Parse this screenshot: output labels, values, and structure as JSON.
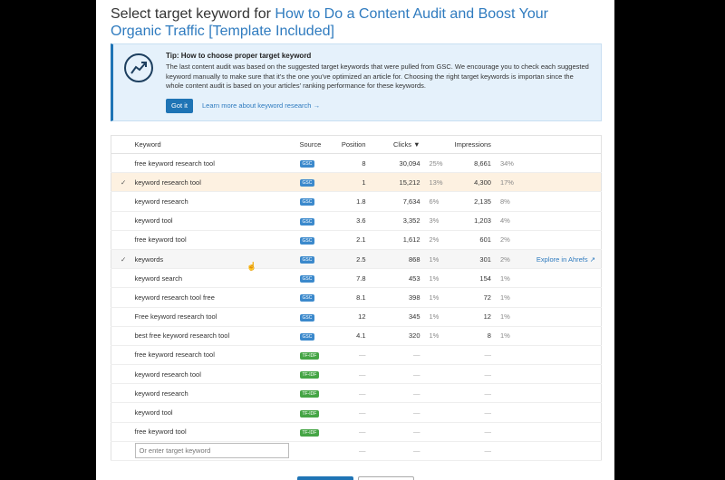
{
  "header": {
    "prefix": "Select target keyword for ",
    "article": "How to Do a Content Audit and Boost Your Organic Traffic [Template Included]"
  },
  "tip": {
    "heading": "Tip: How to choose proper target keyword",
    "body": "The last content audit was based on the suggested target keywords that were pulled from GSC. We encourage you to check each suggested keyword manually to make sure that it's the one you've optimized an article for. Choosing the right target keywords is importan since the whole content audit is based on your articles' ranking performance for these keywords.",
    "got_it": "Got it",
    "learn_more": "Learn more about keyword research →"
  },
  "columns": {
    "keyword": "Keyword",
    "source": "Source",
    "position": "Position",
    "clicks": "Clicks ▼",
    "impressions": "Impressions"
  },
  "explore_label": "Explore in Ahrefs ↗",
  "input_placeholder": "Or enter target keyword",
  "dash": "—",
  "rows": [
    {
      "check": "",
      "keyword": "free keyword research tool",
      "source": "GSC",
      "position": "8",
      "clicks": "30,094",
      "clicks_pct": "25%",
      "impr": "8,661",
      "impr_pct": "34%"
    },
    {
      "check": "✓",
      "keyword": "keyword research tool",
      "source": "GSC",
      "position": "1",
      "clicks": "15,212",
      "clicks_pct": "13%",
      "impr": "4,300",
      "impr_pct": "17%"
    },
    {
      "check": "",
      "keyword": "keyword research",
      "source": "GSC",
      "position": "1.8",
      "clicks": "7,634",
      "clicks_pct": "6%",
      "impr": "2,135",
      "impr_pct": "8%"
    },
    {
      "check": "",
      "keyword": "keyword tool",
      "source": "GSC",
      "position": "3.6",
      "clicks": "3,352",
      "clicks_pct": "3%",
      "impr": "1,203",
      "impr_pct": "4%"
    },
    {
      "check": "",
      "keyword": "free keyword tool",
      "source": "GSC",
      "position": "2.1",
      "clicks": "1,612",
      "clicks_pct": "2%",
      "impr": "601",
      "impr_pct": "2%"
    },
    {
      "check": "✓",
      "keyword": "keywords",
      "source": "GSC",
      "position": "2.5",
      "clicks": "868",
      "clicks_pct": "1%",
      "impr": "301",
      "impr_pct": "2%"
    },
    {
      "check": "",
      "keyword": "keyword search",
      "source": "GSC",
      "position": "7.8",
      "clicks": "453",
      "clicks_pct": "1%",
      "impr": "154",
      "impr_pct": "1%"
    },
    {
      "check": "",
      "keyword": "keyword research tool free",
      "source": "GSC",
      "position": "8.1",
      "clicks": "398",
      "clicks_pct": "1%",
      "impr": "72",
      "impr_pct": "1%"
    },
    {
      "check": "",
      "keyword": "Free keyword research tool",
      "source": "GSC",
      "position": "12",
      "clicks": "345",
      "clicks_pct": "1%",
      "impr": "12",
      "impr_pct": "1%"
    },
    {
      "check": "",
      "keyword": "best free keyword research tool",
      "source": "GSC",
      "position": "4.1",
      "clicks": "320",
      "clicks_pct": "1%",
      "impr": "8",
      "impr_pct": "1%"
    },
    {
      "check": "",
      "keyword": "free keyword research tool",
      "source": "TF-IDF",
      "position": "—",
      "clicks": "—",
      "clicks_pct": "",
      "impr": "—",
      "impr_pct": ""
    },
    {
      "check": "",
      "keyword": "keyword research tool",
      "source": "TF-IDF",
      "position": "—",
      "clicks": "—",
      "clicks_pct": "",
      "impr": "—",
      "impr_pct": ""
    },
    {
      "check": "",
      "keyword": "keyword research",
      "source": "TF-IDF",
      "position": "—",
      "clicks": "—",
      "clicks_pct": "",
      "impr": "—",
      "impr_pct": ""
    },
    {
      "check": "",
      "keyword": "keyword tool",
      "source": "TF-IDF",
      "position": "—",
      "clicks": "—",
      "clicks_pct": "",
      "impr": "—",
      "impr_pct": ""
    },
    {
      "check": "",
      "keyword": "free keyword tool",
      "source": "TF-IDF",
      "position": "—",
      "clicks": "—",
      "clicks_pct": "",
      "impr": "—",
      "impr_pct": ""
    }
  ]
}
